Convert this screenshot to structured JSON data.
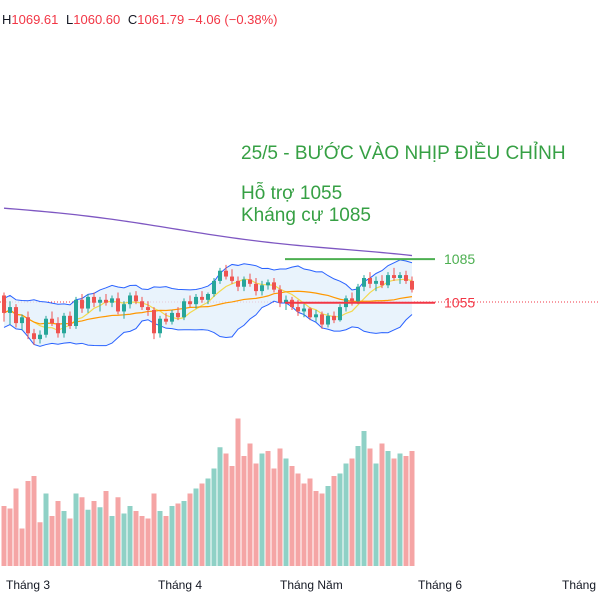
{
  "header": {
    "high_label": "H",
    "high": "1069.61",
    "low_label": "L",
    "low": "1060.60",
    "close_label": "C",
    "close": "1061.79",
    "change": "−4.06 (−0.38%)"
  },
  "annotation": {
    "title": "25/5 - BƯỚC VÀO NHỊP ĐIỀU CHỈNH",
    "support": "Hỗ trợ 1055",
    "resistance": "Kháng cự 1085"
  },
  "colors": {
    "up": "#26a69a",
    "down": "#ef5350",
    "vol_up": "#8fd1c6",
    "vol_down": "#f5a5a5",
    "band": "#2962ff",
    "band_fill": "#e3f0fb",
    "ma_long": "#7e57c2",
    "ma_mid": "#ff9800",
    "ma_short": "#f2d94e",
    "resistance": "#4caf50",
    "support": "#f23645",
    "annotation": "#36a044"
  },
  "chart_data": {
    "type": "candlestick",
    "x_ticks": [
      "Tháng 3",
      "Tháng 4",
      "Tháng Năm",
      "Tháng 6",
      "Tháng"
    ],
    "y_range": [
      995,
      1160
    ],
    "levels": [
      {
        "label": "1085",
        "value": 1085
      },
      {
        "label": "1055",
        "value": 1055
      }
    ],
    "candles": [
      [
        1060,
        1062,
        1042,
        1048
      ],
      [
        1048,
        1056,
        1040,
        1052
      ],
      [
        1052,
        1054,
        1038,
        1041
      ],
      [
        1041,
        1047,
        1036,
        1045
      ],
      [
        1045,
        1049,
        1030,
        1034
      ],
      [
        1034,
        1037,
        1026,
        1030
      ],
      [
        1030,
        1036,
        1027,
        1033
      ],
      [
        1033,
        1046,
        1031,
        1044
      ],
      [
        1044,
        1049,
        1039,
        1041
      ],
      [
        1041,
        1045,
        1031,
        1034
      ],
      [
        1034,
        1048,
        1031,
        1046
      ],
      [
        1046,
        1049,
        1037,
        1039
      ],
      [
        1039,
        1059,
        1037,
        1057
      ],
      [
        1057,
        1061,
        1048,
        1051
      ],
      [
        1051,
        1061,
        1048,
        1059
      ],
      [
        1059,
        1062,
        1052,
        1055
      ],
      [
        1055,
        1059,
        1049,
        1057
      ],
      [
        1057,
        1061,
        1053,
        1055
      ],
      [
        1055,
        1060,
        1052,
        1058
      ],
      [
        1058,
        1062,
        1047,
        1049
      ],
      [
        1049,
        1056,
        1044,
        1054
      ],
      [
        1054,
        1062,
        1051,
        1060
      ],
      [
        1060,
        1063,
        1054,
        1056
      ],
      [
        1056,
        1059,
        1050,
        1052
      ],
      [
        1052,
        1056,
        1046,
        1050
      ],
      [
        1050,
        1052,
        1030,
        1034
      ],
      [
        1034,
        1046,
        1031,
        1044
      ],
      [
        1044,
        1048,
        1040,
        1042
      ],
      [
        1042,
        1050,
        1040,
        1048
      ],
      [
        1048,
        1052,
        1043,
        1045
      ],
      [
        1045,
        1058,
        1043,
        1056
      ],
      [
        1056,
        1060,
        1052,
        1054
      ],
      [
        1054,
        1061,
        1051,
        1059
      ],
      [
        1059,
        1063,
        1055,
        1057
      ],
      [
        1057,
        1062,
        1054,
        1061
      ],
      [
        1061,
        1072,
        1059,
        1070
      ],
      [
        1070,
        1079,
        1068,
        1077
      ],
      [
        1077,
        1081,
        1071,
        1073
      ],
      [
        1073,
        1078,
        1068,
        1070
      ],
      [
        1070,
        1073,
        1063,
        1066
      ],
      [
        1066,
        1073,
        1063,
        1071
      ],
      [
        1071,
        1075,
        1066,
        1068
      ],
      [
        1068,
        1072,
        1060,
        1063
      ],
      [
        1063,
        1070,
        1060,
        1067
      ],
      [
        1067,
        1071,
        1064,
        1069
      ],
      [
        1069,
        1072,
        1062,
        1064
      ],
      [
        1064,
        1067,
        1052,
        1055
      ],
      [
        1055,
        1060,
        1050,
        1057
      ],
      [
        1057,
        1059,
        1050,
        1052
      ],
      [
        1052,
        1057,
        1046,
        1049
      ],
      [
        1049,
        1054,
        1045,
        1051
      ],
      [
        1051,
        1052,
        1043,
        1045
      ],
      [
        1045,
        1050,
        1042,
        1047
      ],
      [
        1047,
        1049,
        1037,
        1040
      ],
      [
        1040,
        1048,
        1038,
        1046
      ],
      [
        1046,
        1049,
        1041,
        1043
      ],
      [
        1043,
        1054,
        1042,
        1052
      ],
      [
        1052,
        1060,
        1049,
        1058
      ],
      [
        1058,
        1062,
        1053,
        1056
      ],
      [
        1056,
        1068,
        1054,
        1066
      ],
      [
        1066,
        1074,
        1063,
        1072
      ],
      [
        1072,
        1076,
        1065,
        1068
      ],
      [
        1068,
        1073,
        1063,
        1070
      ],
      [
        1070,
        1074,
        1065,
        1067
      ],
      [
        1067,
        1076,
        1065,
        1074
      ],
      [
        1074,
        1079,
        1070,
        1072
      ],
      [
        1072,
        1076,
        1068,
        1074
      ],
      [
        1074,
        1077,
        1068,
        1070
      ],
      [
        1070,
        1073,
        1062,
        1064
      ]
    ],
    "volume": [
      {
        "v": 48,
        "up": false
      },
      {
        "v": 46,
        "up": false
      },
      {
        "v": 62,
        "up": false
      },
      {
        "v": 30,
        "up": false
      },
      {
        "v": 68,
        "up": false
      },
      {
        "v": 72,
        "up": false
      },
      {
        "v": 35,
        "up": false
      },
      {
        "v": 58,
        "up": true
      },
      {
        "v": 40,
        "up": false
      },
      {
        "v": 52,
        "up": false
      },
      {
        "v": 44,
        "up": true
      },
      {
        "v": 38,
        "up": false
      },
      {
        "v": 58,
        "up": true
      },
      {
        "v": 55,
        "up": false
      },
      {
        "v": 45,
        "up": true
      },
      {
        "v": 52,
        "up": false
      },
      {
        "v": 47,
        "up": true
      },
      {
        "v": 60,
        "up": false
      },
      {
        "v": 40,
        "up": true
      },
      {
        "v": 55,
        "up": false
      },
      {
        "v": 42,
        "up": true
      },
      {
        "v": 48,
        "up": true
      },
      {
        "v": 44,
        "up": false
      },
      {
        "v": 40,
        "up": false
      },
      {
        "v": 38,
        "up": false
      },
      {
        "v": 58,
        "up": false
      },
      {
        "v": 44,
        "up": true
      },
      {
        "v": 40,
        "up": false
      },
      {
        "v": 48,
        "up": true
      },
      {
        "v": 50,
        "up": false
      },
      {
        "v": 52,
        "up": true
      },
      {
        "v": 58,
        "up": false
      },
      {
        "v": 62,
        "up": true
      },
      {
        "v": 66,
        "up": false
      },
      {
        "v": 70,
        "up": true
      },
      {
        "v": 78,
        "up": true
      },
      {
        "v": 95,
        "up": true
      },
      {
        "v": 90,
        "up": false
      },
      {
        "v": 80,
        "up": false
      },
      {
        "v": 118,
        "up": false
      },
      {
        "v": 88,
        "up": false
      },
      {
        "v": 98,
        "up": false
      },
      {
        "v": 82,
        "up": false
      },
      {
        "v": 90,
        "up": true
      },
      {
        "v": 92,
        "up": false
      },
      {
        "v": 78,
        "up": false
      },
      {
        "v": 94,
        "up": false
      },
      {
        "v": 86,
        "up": true
      },
      {
        "v": 80,
        "up": false
      },
      {
        "v": 74,
        "up": false
      },
      {
        "v": 66,
        "up": false
      },
      {
        "v": 70,
        "up": false
      },
      {
        "v": 60,
        "up": false
      },
      {
        "v": 58,
        "up": false
      },
      {
        "v": 64,
        "up": true
      },
      {
        "v": 72,
        "up": false
      },
      {
        "v": 74,
        "up": true
      },
      {
        "v": 82,
        "up": true
      },
      {
        "v": 86,
        "up": false
      },
      {
        "v": 96,
        "up": true
      },
      {
        "v": 108,
        "up": true
      },
      {
        "v": 94,
        "up": false
      },
      {
        "v": 82,
        "up": true
      },
      {
        "v": 98,
        "up": false
      },
      {
        "v": 92,
        "up": true
      },
      {
        "v": 86,
        "up": false
      },
      {
        "v": 90,
        "up": true
      },
      {
        "v": 88,
        "up": false
      },
      {
        "v": 92,
        "up": false
      }
    ]
  }
}
